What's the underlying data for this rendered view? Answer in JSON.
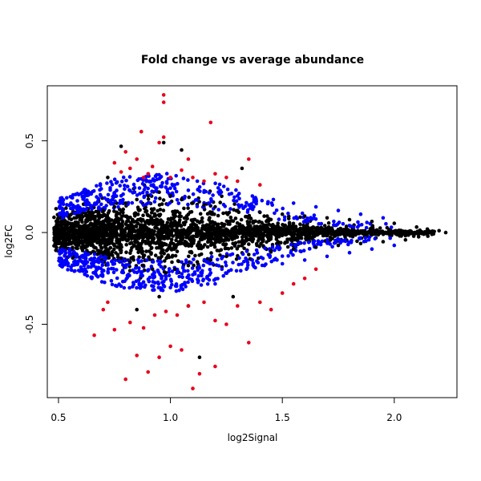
{
  "chart_data": {
    "type": "scatter",
    "title": "Fold change vs average abundance",
    "xlabel": "log2Signal",
    "ylabel": "log2FC",
    "xlim": [
      0.45,
      2.28
    ],
    "ylim": [
      -0.9,
      0.8
    ],
    "xticks": [
      0.5,
      1.0,
      1.5,
      2.0
    ],
    "xtick_labels": [
      "0.5",
      "1.0",
      "1.5",
      "2.0"
    ],
    "yticks": [
      -0.5,
      0.0,
      0.5
    ],
    "ytick_labels": [
      "-0.5",
      "0.0",
      "0.5"
    ],
    "grid": false,
    "legend": "none",
    "colors": {
      "black": "#000000",
      "blue": "#0000ff",
      "red": "#e8001c"
    },
    "series": [
      {
        "color": "black",
        "points": [
          [
            0.5,
            0.02
          ],
          [
            0.52,
            -0.03
          ],
          [
            0.55,
            0.05
          ],
          [
            0.58,
            -0.06
          ],
          [
            0.6,
            0.08
          ],
          [
            0.62,
            -0.08
          ],
          [
            0.65,
            0.1
          ],
          [
            0.68,
            -0.1
          ],
          [
            0.7,
            0.12
          ],
          [
            0.72,
            -0.12
          ],
          [
            0.75,
            0.14
          ],
          [
            0.78,
            -0.14
          ],
          [
            0.8,
            0.16
          ],
          [
            0.82,
            -0.16
          ],
          [
            0.85,
            0.18
          ],
          [
            0.88,
            -0.18
          ],
          [
            0.9,
            0.2
          ],
          [
            0.92,
            -0.2
          ],
          [
            0.95,
            0.22
          ],
          [
            0.98,
            -0.22
          ],
          [
            1.0,
            0.2
          ],
          [
            1.02,
            -0.2
          ],
          [
            1.05,
            0.18
          ],
          [
            1.08,
            -0.18
          ],
          [
            1.1,
            0.16
          ],
          [
            1.12,
            -0.16
          ],
          [
            1.15,
            0.15
          ],
          [
            1.18,
            -0.15
          ],
          [
            1.2,
            0.14
          ],
          [
            1.25,
            -0.13
          ],
          [
            1.3,
            0.12
          ],
          [
            1.35,
            -0.12
          ],
          [
            1.4,
            0.11
          ],
          [
            1.45,
            -0.1
          ],
          [
            1.5,
            0.1
          ],
          [
            1.55,
            -0.09
          ],
          [
            1.6,
            0.09
          ],
          [
            1.65,
            -0.08
          ],
          [
            1.7,
            0.08
          ],
          [
            1.75,
            -0.07
          ],
          [
            1.8,
            0.07
          ],
          [
            1.85,
            -0.06
          ],
          [
            1.9,
            0.06
          ],
          [
            1.95,
            -0.05
          ],
          [
            2.0,
            0.05
          ],
          [
            2.05,
            -0.04
          ],
          [
            2.1,
            0.03
          ],
          [
            2.15,
            -0.02
          ],
          [
            2.2,
            0.01
          ],
          [
            2.23,
            0.0
          ],
          [
            0.78,
            0.47
          ],
          [
            0.97,
            0.49
          ],
          [
            1.13,
            -0.68
          ],
          [
            1.08,
            -0.4
          ],
          [
            0.85,
            -0.42
          ],
          [
            1.05,
            0.45
          ],
          [
            1.32,
            0.35
          ],
          [
            1.28,
            -0.35
          ],
          [
            0.95,
            -0.35
          ],
          [
            0.72,
            0.3
          ]
        ]
      },
      {
        "color": "blue",
        "points": [
          [
            0.52,
            0.08
          ],
          [
            0.55,
            -0.09
          ],
          [
            0.6,
            0.12
          ],
          [
            0.62,
            -0.11
          ],
          [
            0.66,
            0.15
          ],
          [
            0.68,
            -0.14
          ],
          [
            0.72,
            0.18
          ],
          [
            0.75,
            -0.17
          ],
          [
            0.78,
            0.2
          ],
          [
            0.8,
            -0.19
          ],
          [
            0.84,
            0.22
          ],
          [
            0.86,
            -0.21
          ],
          [
            0.9,
            0.24
          ],
          [
            0.92,
            -0.23
          ],
          [
            0.96,
            0.25
          ],
          [
            0.98,
            -0.24
          ],
          [
            1.02,
            0.24
          ],
          [
            1.04,
            -0.24
          ],
          [
            1.08,
            0.23
          ],
          [
            1.1,
            -0.23
          ],
          [
            1.15,
            0.22
          ],
          [
            1.18,
            -0.22
          ],
          [
            1.22,
            0.21
          ],
          [
            1.26,
            -0.21
          ],
          [
            1.3,
            0.2
          ],
          [
            1.34,
            -0.2
          ],
          [
            1.38,
            0.19
          ],
          [
            1.42,
            -0.18
          ],
          [
            1.46,
            0.18
          ],
          [
            1.5,
            -0.17
          ],
          [
            1.55,
            0.16
          ],
          [
            1.6,
            -0.15
          ],
          [
            1.65,
            0.14
          ],
          [
            1.7,
            -0.13
          ],
          [
            1.75,
            0.12
          ],
          [
            1.8,
            -0.11
          ],
          [
            1.85,
            0.1
          ],
          [
            1.9,
            -0.09
          ],
          [
            1.95,
            0.08
          ],
          [
            2.0,
            -0.07
          ],
          [
            1.0,
            -0.3
          ],
          [
            1.2,
            -0.28
          ],
          [
            0.88,
            -0.27
          ],
          [
            1.12,
            0.28
          ],
          [
            0.94,
            0.29
          ]
        ]
      },
      {
        "color": "red",
        "points": [
          [
            0.97,
            0.75
          ],
          [
            0.97,
            0.71
          ],
          [
            0.87,
            0.55
          ],
          [
            1.18,
            0.6
          ],
          [
            0.97,
            0.52
          ],
          [
            0.95,
            0.49
          ],
          [
            0.8,
            0.44
          ],
          [
            0.85,
            0.4
          ],
          [
            0.75,
            0.38
          ],
          [
            0.82,
            0.35
          ],
          [
            0.9,
            0.32
          ],
          [
            1.0,
            0.3
          ],
          [
            1.05,
            0.34
          ],
          [
            1.1,
            0.3
          ],
          [
            1.15,
            0.28
          ],
          [
            1.2,
            0.32
          ],
          [
            1.25,
            0.3
          ],
          [
            1.3,
            0.28
          ],
          [
            1.35,
            0.4
          ],
          [
            1.4,
            0.26
          ],
          [
            0.92,
            0.36
          ],
          [
            0.88,
            0.3
          ],
          [
            0.78,
            0.33
          ],
          [
            1.08,
            0.4
          ],
          [
            1.13,
            -0.77
          ],
          [
            1.2,
            -0.73
          ],
          [
            0.8,
            -0.8
          ],
          [
            0.9,
            -0.76
          ],
          [
            1.1,
            -0.85
          ],
          [
            0.85,
            -0.67
          ],
          [
            0.95,
            -0.68
          ],
          [
            1.0,
            -0.62
          ],
          [
            1.05,
            -0.64
          ],
          [
            0.75,
            -0.53
          ],
          [
            0.82,
            -0.49
          ],
          [
            0.88,
            -0.52
          ],
          [
            0.93,
            -0.45
          ],
          [
            0.98,
            -0.43
          ],
          [
            1.03,
            -0.45
          ],
          [
            1.08,
            -0.4
          ],
          [
            1.15,
            -0.38
          ],
          [
            1.2,
            -0.48
          ],
          [
            1.25,
            -0.5
          ],
          [
            1.3,
            -0.4
          ],
          [
            1.35,
            -0.6
          ],
          [
            1.4,
            -0.38
          ],
          [
            1.45,
            -0.42
          ],
          [
            1.55,
            -0.28
          ],
          [
            1.6,
            -0.25
          ],
          [
            1.65,
            -0.2
          ],
          [
            0.66,
            -0.56
          ],
          [
            0.7,
            -0.42
          ],
          [
            0.72,
            -0.38
          ],
          [
            1.5,
            -0.33
          ]
        ]
      }
    ]
  }
}
